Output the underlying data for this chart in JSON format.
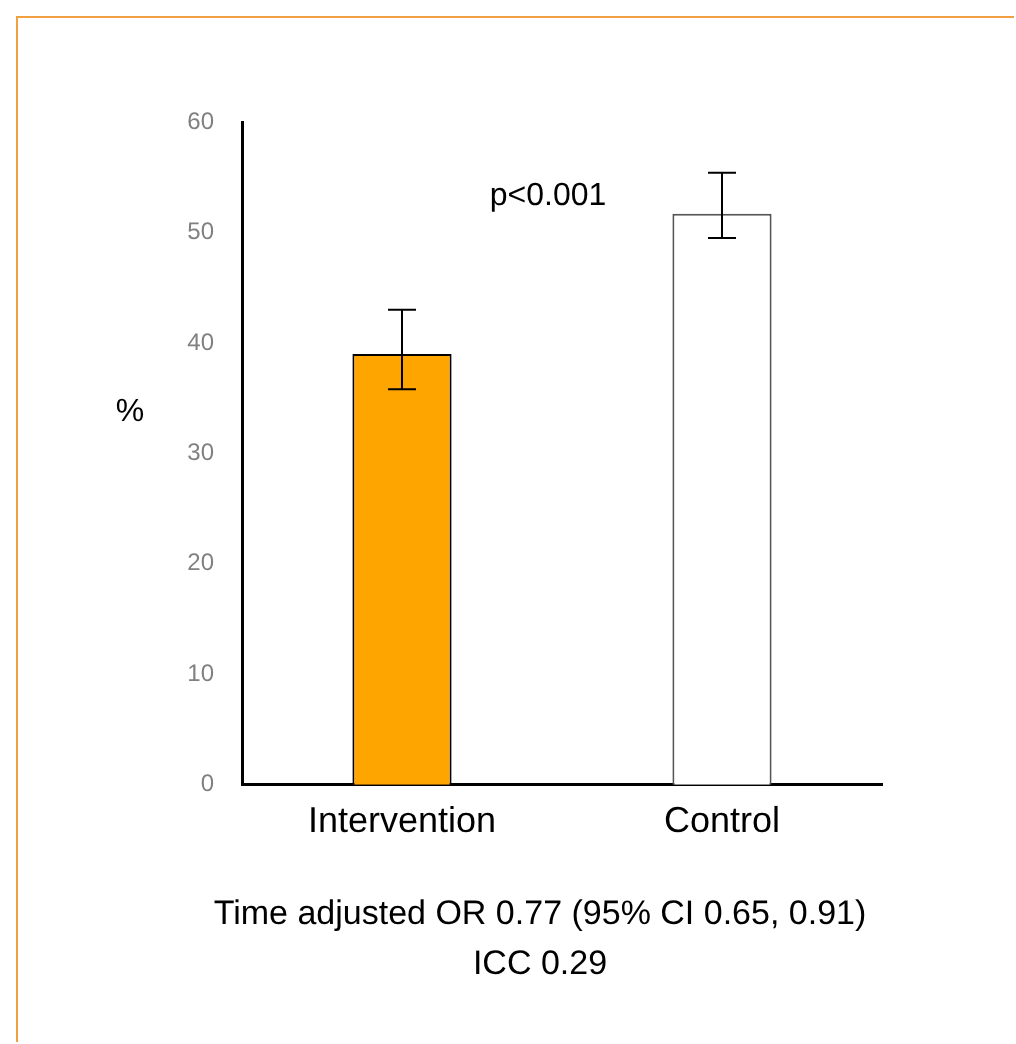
{
  "chart_data": {
    "type": "bar",
    "ylabel": "%",
    "categories": [
      "Intervention",
      "Control"
    ],
    "values": [
      39,
      51.7
    ],
    "errors": [
      [
        35.8,
        43
      ],
      [
        49.5,
        55.4
      ]
    ],
    "colors": [
      "#ffa500",
      "#ffffff"
    ],
    "ylim": [
      0,
      60
    ],
    "yticks": [
      0,
      10,
      20,
      30,
      40,
      50,
      60
    ],
    "grid": false,
    "legend": false,
    "annotations": [
      "p<0.001",
      "Time adjusted OR 0.77 (95% CI 0.65, 0.91)",
      "ICC 0.29"
    ]
  }
}
